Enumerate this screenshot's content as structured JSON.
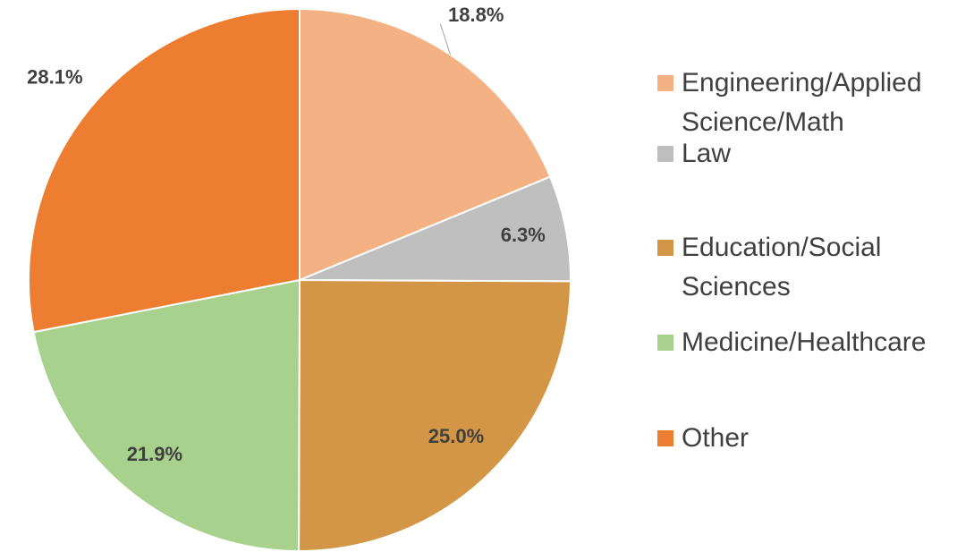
{
  "chart_data": {
    "type": "pie",
    "categories": [
      "Engineering/Applied Science/Math",
      "Law",
      "Education/Social Sciences",
      "Medicine/Healthcare",
      "Other"
    ],
    "values": [
      18.8,
      6.3,
      25.0,
      21.9,
      28.1
    ],
    "value_labels": [
      "18.8%",
      "6.3%",
      "25.0%",
      "21.9%",
      "28.1%"
    ],
    "colors": [
      "#f4b183",
      "#bfbfbf",
      "#d29646",
      "#a9d18e",
      "#ed7d31"
    ],
    "legend": "right"
  }
}
